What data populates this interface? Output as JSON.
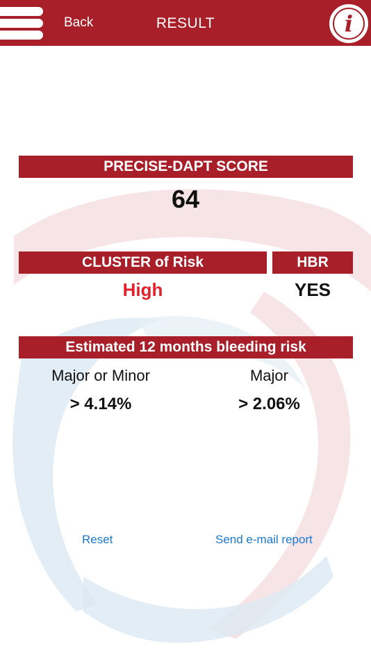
{
  "nav": {
    "back_label": "Back",
    "title": "RESULT",
    "info_glyph": "i"
  },
  "score": {
    "header": "PRECISE-DAPT SCORE",
    "value": "64"
  },
  "cluster": {
    "header": "CLUSTER of Risk",
    "value": "High"
  },
  "hbr": {
    "header": "HBR",
    "value": "YES"
  },
  "bleeding": {
    "header": "Estimated 12 months bleeding risk",
    "columns": [
      {
        "label": "Major or Minor",
        "value": "> 4.14%"
      },
      {
        "label": "Major",
        "value": "> 2.06%"
      }
    ]
  },
  "actions": {
    "reset_label": "Reset",
    "email_label": "Send e-mail report"
  },
  "colors": {
    "brand_red": "#a81f2a",
    "alert_red": "#e3202a",
    "link_blue": "#1877d2"
  }
}
